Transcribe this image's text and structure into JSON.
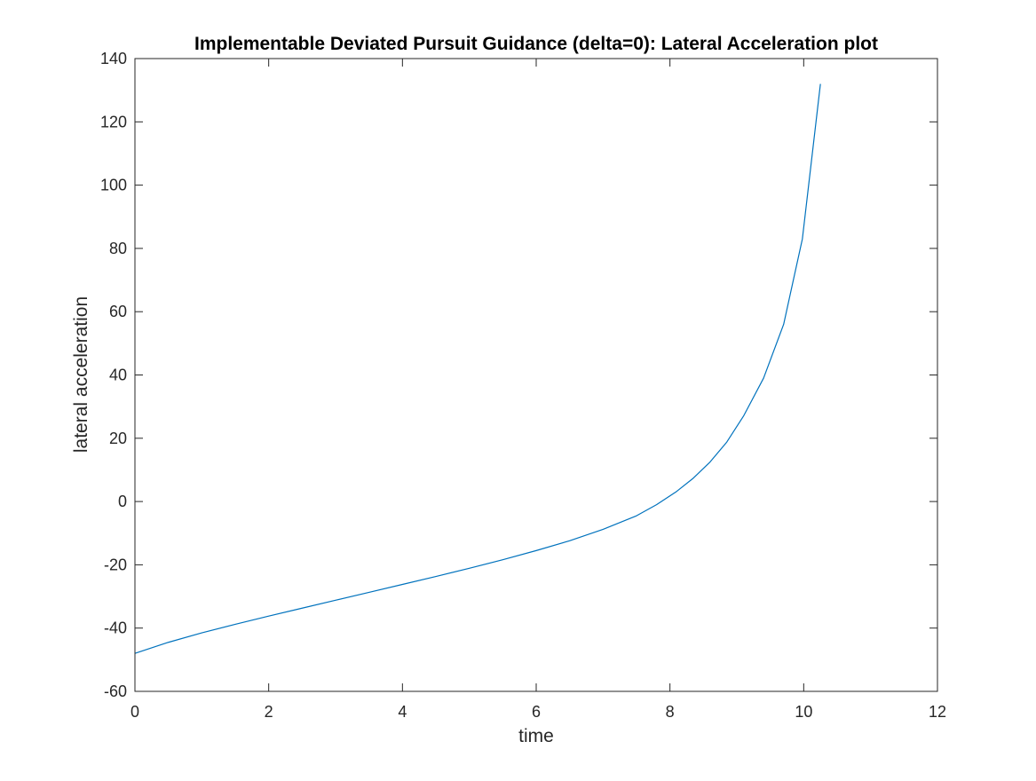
{
  "chart_data": {
    "type": "line",
    "title": "Implementable Deviated Pursuit Guidance (delta=0): Lateral Acceleration plot",
    "xlabel": "time",
    "ylabel": "lateral acceleration",
    "xlim": [
      0,
      12
    ],
    "ylim": [
      -60,
      140
    ],
    "xticks": [
      0,
      2,
      4,
      6,
      8,
      10,
      12
    ],
    "yticks": [
      -60,
      -40,
      -20,
      0,
      20,
      40,
      60,
      80,
      100,
      120,
      140
    ],
    "xtick_labels": [
      "0",
      "2",
      "4",
      "6",
      "8",
      "10",
      "12"
    ],
    "ytick_labels": [
      "-60",
      "-40",
      "-20",
      "0",
      "20",
      "40",
      "60",
      "80",
      "100",
      "120",
      "140"
    ],
    "grid": false,
    "box": true,
    "series": [
      {
        "color": "#0072bd",
        "x": [
          0,
          0.5,
          1.0,
          1.5,
          2.0,
          2.5,
          3.0,
          3.5,
          4.0,
          4.5,
          5.0,
          5.5,
          6.0,
          6.5,
          7.0,
          7.5,
          7.8,
          8.1,
          8.35,
          8.6,
          8.85,
          9.1,
          9.4,
          9.7,
          9.98,
          10.25
        ],
        "y": [
          -48,
          -44.5,
          -41.5,
          -38.8,
          -36.2,
          -33.7,
          -31.2,
          -28.7,
          -26.2,
          -23.7,
          -21.1,
          -18.4,
          -15.5,
          -12.4,
          -8.8,
          -4.5,
          -1.0,
          3.2,
          7.4,
          12.5,
          18.8,
          27.0,
          39.0,
          56.0,
          83.0,
          132.0
        ]
      }
    ]
  }
}
